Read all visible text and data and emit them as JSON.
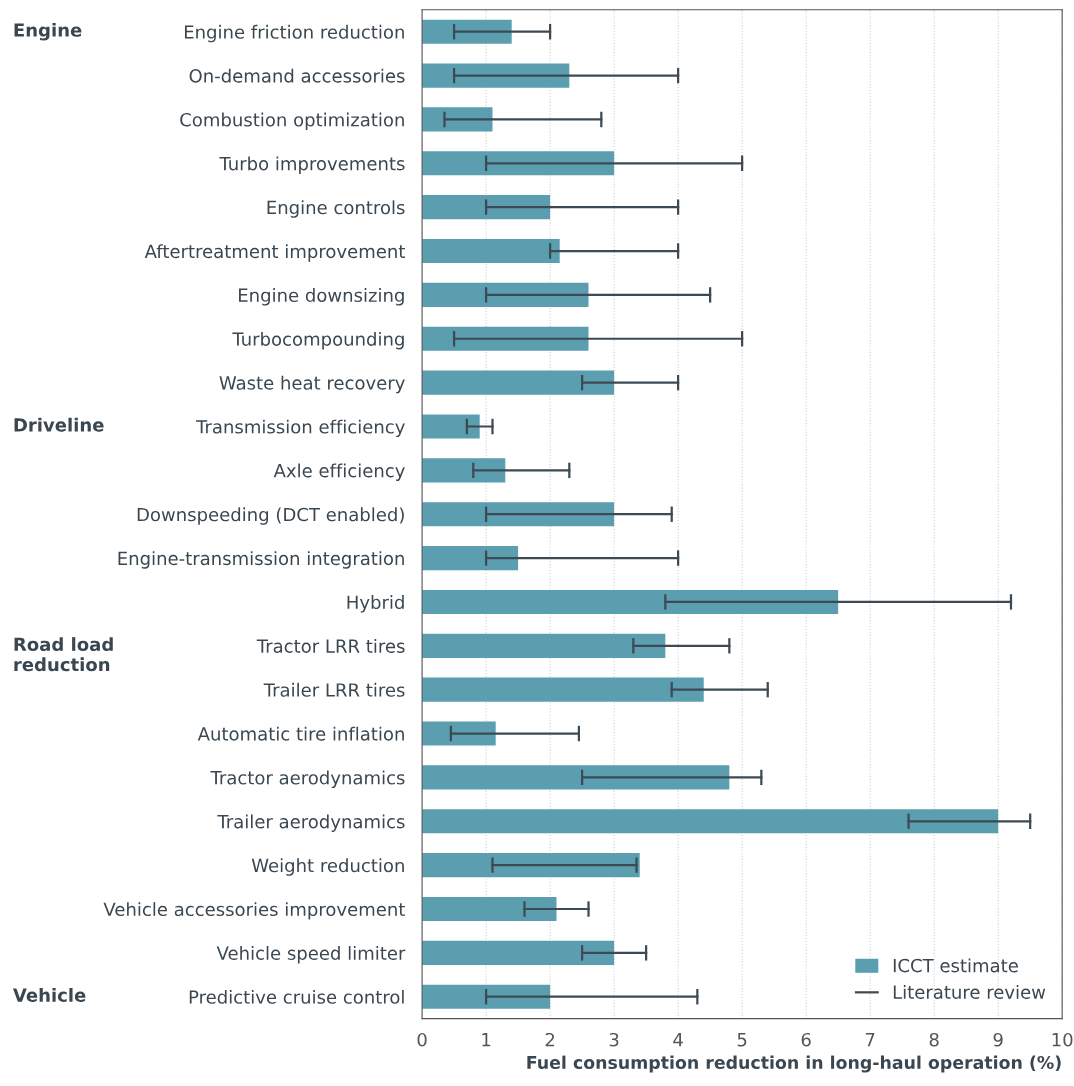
{
  "chart_data": {
    "type": "bar",
    "orientation": "horizontal",
    "xlabel": "Fuel consumption reduction in long-haul operation (%)",
    "categories": [
      "Engine friction reduction",
      "On-demand accessories",
      "Combustion optimization",
      "Turbo improvements",
      "Engine controls",
      "Aftertreatment improvement",
      "Engine downsizing",
      "Turbocompounding",
      "Waste heat recovery",
      "Transmission efficiency",
      "Axle efficiency",
      "Downspeeding (DCT enabled)",
      "Engine-transmission integration",
      "Hybrid",
      "Tractor LRR tires",
      "Trailer LRR tires",
      "Automatic tire inflation",
      "Tractor aerodynamics",
      "Trailer aerodynamics",
      "Weight reduction",
      "Vehicle accessories improvement",
      "Vehicle speed limiter",
      "Predictive cruise control"
    ],
    "series": [
      {
        "name": "ICCT estimate",
        "color": "#5a9eb0",
        "values": [
          1.4,
          2.3,
          1.1,
          3.0,
          2.0,
          2.15,
          2.6,
          2.6,
          3.0,
          0.9,
          1.3,
          3.0,
          1.5,
          6.5,
          3.8,
          4.4,
          1.15,
          4.8,
          9.0,
          3.4,
          2.1,
          3.0,
          2.0
        ],
        "errors": [
          [
            0.5,
            2.0
          ],
          [
            0.5,
            4.0
          ],
          [
            0.35,
            2.8
          ],
          [
            1.0,
            5.0
          ],
          [
            1.0,
            4.0
          ],
          [
            2.0,
            4.0
          ],
          [
            1.0,
            4.5
          ],
          [
            0.5,
            5.0
          ],
          [
            2.5,
            4.0
          ],
          [
            0.7,
            1.1
          ],
          [
            0.8,
            2.3
          ],
          [
            1.0,
            3.9
          ],
          [
            1.0,
            4.0
          ],
          [
            3.8,
            9.2
          ],
          [
            3.3,
            4.8
          ],
          [
            3.9,
            5.4
          ],
          [
            0.45,
            2.45
          ],
          [
            2.5,
            5.3
          ],
          [
            7.6,
            9.5
          ],
          [
            1.1,
            3.35
          ],
          [
            1.6,
            2.6
          ],
          [
            2.5,
            3.5
          ],
          [
            1.0,
            4.3
          ]
        ]
      }
    ],
    "xlim": [
      0,
      10
    ],
    "xticks": [
      0,
      1,
      2,
      3,
      4,
      5,
      6,
      7,
      8,
      9,
      10
    ],
    "grid": "x",
    "legend": "bottom right",
    "annotations": [
      "Engine",
      "Driveline",
      "Road load\nreduction",
      "Vehicle",
      "Literature review"
    ]
  }
}
